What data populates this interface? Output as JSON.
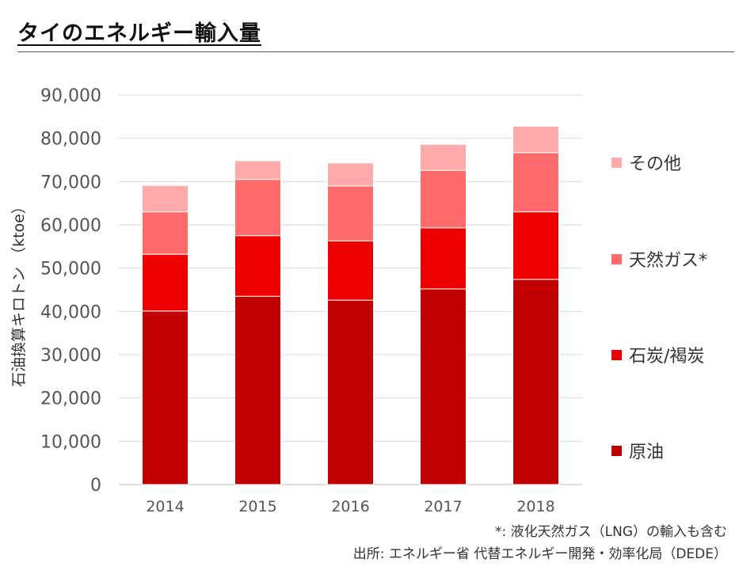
{
  "page": {
    "title": "タイのエネルギー輸入量",
    "footnote": "*: 液化天然ガス（LNG）の輸入も含む",
    "source": "出所: エネルギー省 代替エネルギー開発・効率化局（DEDE）"
  },
  "chart_data": {
    "type": "bar",
    "stacked": true,
    "title": "",
    "xlabel": "",
    "ylabel": "石油換算キロトン （ktoe）",
    "categories": [
      "2014",
      "2015",
      "2016",
      "2017",
      "2018"
    ],
    "ylim": [
      0,
      90000
    ],
    "yticks": [
      0,
      10000,
      20000,
      30000,
      40000,
      50000,
      60000,
      70000,
      80000,
      90000
    ],
    "ytick_labels": [
      "0",
      "10,000",
      "20,000",
      "30,000",
      "40,000",
      "50,000",
      "60,000",
      "70,000",
      "80,000",
      "90,000"
    ],
    "grid": true,
    "legend_position": "right",
    "series": [
      {
        "name": "原油",
        "color": "#C00000",
        "values": [
          40100,
          43500,
          42600,
          45200,
          47400
        ]
      },
      {
        "name": "石炭/褐炭",
        "color": "#EE0000",
        "values": [
          13100,
          14000,
          13700,
          14100,
          15600
        ]
      },
      {
        "name": "天然ガス*",
        "color": "#FF6B6B",
        "values": [
          9800,
          13000,
          12700,
          13300,
          13700
        ]
      },
      {
        "name": "その他",
        "color": "#FFABAB",
        "values": [
          6100,
          4300,
          5300,
          6000,
          6100
        ]
      }
    ]
  }
}
